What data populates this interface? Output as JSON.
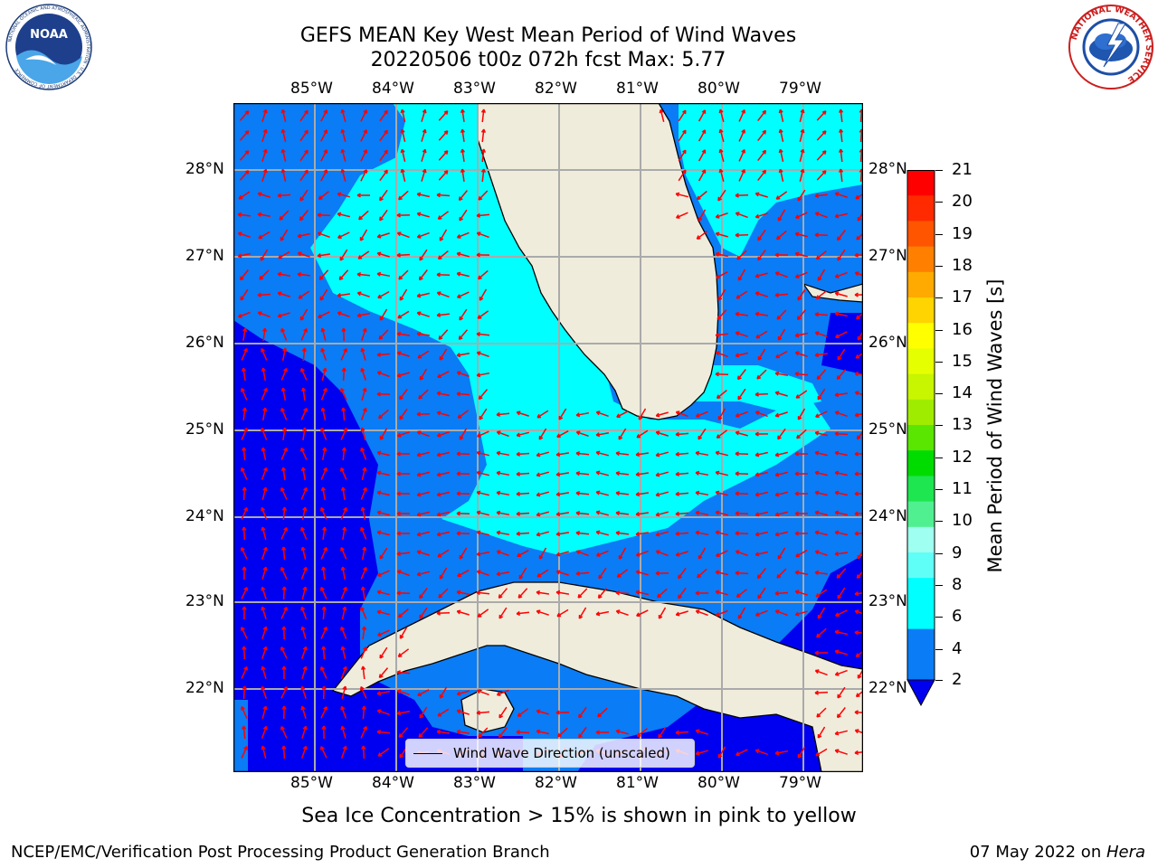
{
  "header": {
    "title_line1": "GEFS MEAN Key West Mean Period of Wind Waves",
    "title_line2": "20220506 t00z 072h fcst   Max: 5.77"
  },
  "logos": {
    "left": "NOAA",
    "left_ring_text": "NATIONAL OCEANIC AND ATMOSPHERIC ADMINISTRATION · U.S. DEPARTMENT OF COMMERCE",
    "right_ring_text": "NATIONAL WEATHER SERVICE"
  },
  "map": {
    "lon_labels": [
      "85°W",
      "84°W",
      "83°W",
      "82°W",
      "81°W",
      "80°W",
      "79°W"
    ],
    "lat_labels": [
      "28°N",
      "27°N",
      "26°N",
      "25°N",
      "24°N",
      "23°N",
      "22°N"
    ],
    "legend_label": "Wind Wave Direction (unscaled)",
    "arrow_color": "#ff0000",
    "land_color": "#efecdc",
    "region_colors": {
      "2-4": "#0a7cf5",
      "4-6": "#00ffff",
      "below-2": "#0000f0"
    }
  },
  "colorbar": {
    "title": "Mean Period of Wind Waves [s]",
    "ticks": [
      "21",
      "20",
      "19",
      "18",
      "17",
      "16",
      "15",
      "14",
      "13",
      "12",
      "11",
      "10",
      "9",
      "8",
      "6",
      "4",
      "2"
    ],
    "colors_top_to_bottom": [
      "#ff0000",
      "#ff2a00",
      "#ff5500",
      "#ff8000",
      "#ffaa00",
      "#ffd400",
      "#ffff00",
      "#e6ff00",
      "#c8f500",
      "#a0ec00",
      "#5ae600",
      "#00dc00",
      "#1ee650",
      "#50f090",
      "#9ffff0",
      "#5ffff8",
      "#00ffff",
      "#00ffff",
      "#0a7cf5",
      "#0a7cf5"
    ],
    "under_color": "#0000f0"
  },
  "footer": {
    "subtitle": "Sea Ice Concentration > 15% is shown in pink to yellow",
    "left": "NCEP/EMC/Verification Post Processing Product Generation Branch",
    "right_date": "07 May 2022 on ",
    "right_host": "Hera"
  }
}
